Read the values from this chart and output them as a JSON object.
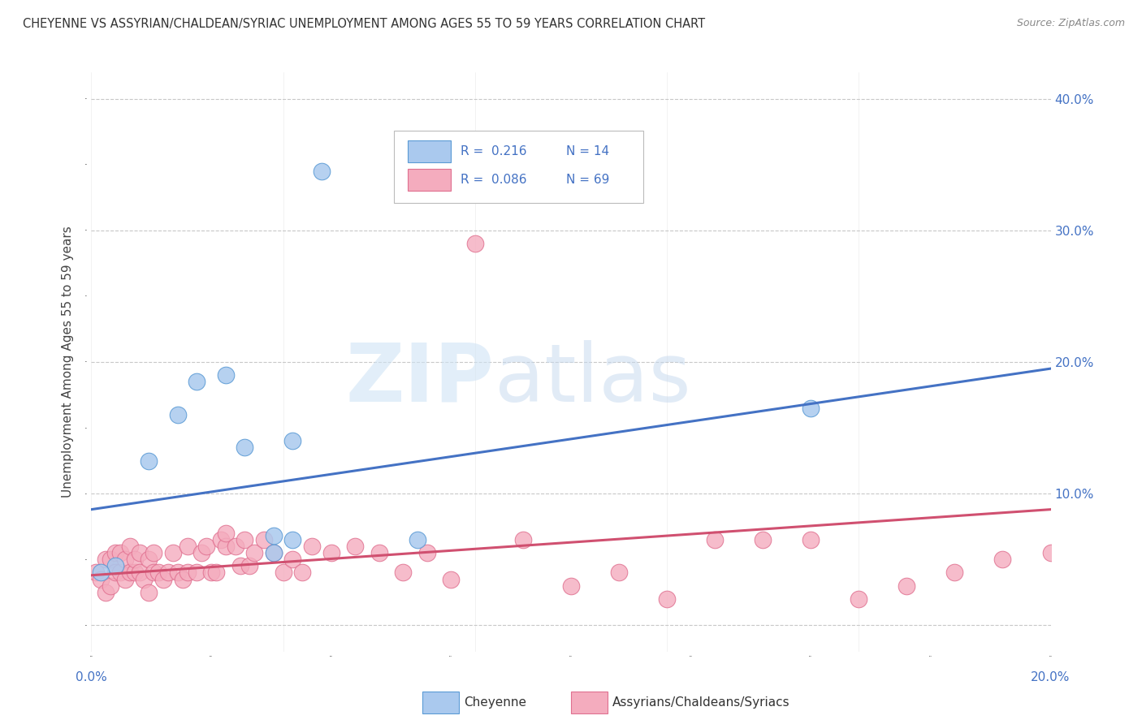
{
  "title": "CHEYENNE VS ASSYRIAN/CHALDEAN/SYRIAC UNEMPLOYMENT AMONG AGES 55 TO 59 YEARS CORRELATION CHART",
  "source": "Source: ZipAtlas.com",
  "ylabel": "Unemployment Among Ages 55 to 59 years",
  "xlim": [
    0.0,
    0.2
  ],
  "ylim": [
    -0.02,
    0.42
  ],
  "xticks": [
    0.0,
    0.04,
    0.08,
    0.12,
    0.16,
    0.2
  ],
  "yticks": [
    0.0,
    0.1,
    0.2,
    0.3,
    0.4
  ],
  "xticklabels": [
    "0.0%",
    "",
    "",
    "",
    "",
    "20.0%"
  ],
  "yticklabels_right": [
    "",
    "10.0%",
    "20.0%",
    "30.0%",
    "40.0%"
  ],
  "blue_fill": "#aac9ee",
  "blue_edge": "#5b9bd5",
  "pink_fill": "#f4acbe",
  "pink_edge": "#e07090",
  "blue_line_color": "#4472c4",
  "pink_line_color": "#d05070",
  "legend_R_blue": "R =  0.216",
  "legend_N_blue": "N = 14",
  "legend_R_pink": "R =  0.086",
  "legend_N_pink": "N = 69",
  "watermark_zip": "ZIP",
  "watermark_atlas": "atlas",
  "blue_points_x": [
    0.005,
    0.012,
    0.018,
    0.022,
    0.028,
    0.032,
    0.038,
    0.042,
    0.048,
    0.068,
    0.038,
    0.042,
    0.15,
    0.002
  ],
  "blue_points_y": [
    0.045,
    0.125,
    0.16,
    0.185,
    0.19,
    0.135,
    0.068,
    0.14,
    0.345,
    0.065,
    0.055,
    0.065,
    0.165,
    0.04
  ],
  "pink_points_x": [
    0.001,
    0.002,
    0.003,
    0.003,
    0.004,
    0.004,
    0.005,
    0.005,
    0.006,
    0.006,
    0.007,
    0.007,
    0.008,
    0.008,
    0.009,
    0.009,
    0.01,
    0.01,
    0.011,
    0.012,
    0.012,
    0.013,
    0.013,
    0.014,
    0.015,
    0.016,
    0.017,
    0.018,
    0.019,
    0.02,
    0.02,
    0.022,
    0.023,
    0.024,
    0.025,
    0.026,
    0.027,
    0.028,
    0.028,
    0.03,
    0.031,
    0.032,
    0.033,
    0.034,
    0.036,
    0.038,
    0.04,
    0.042,
    0.044,
    0.046,
    0.05,
    0.055,
    0.06,
    0.065,
    0.07,
    0.075,
    0.08,
    0.09,
    0.1,
    0.11,
    0.12,
    0.13,
    0.14,
    0.15,
    0.16,
    0.17,
    0.18,
    0.19,
    0.2
  ],
  "pink_points_y": [
    0.04,
    0.035,
    0.025,
    0.05,
    0.03,
    0.05,
    0.04,
    0.055,
    0.04,
    0.055,
    0.035,
    0.05,
    0.04,
    0.06,
    0.04,
    0.05,
    0.04,
    0.055,
    0.035,
    0.025,
    0.05,
    0.04,
    0.055,
    0.04,
    0.035,
    0.04,
    0.055,
    0.04,
    0.035,
    0.04,
    0.06,
    0.04,
    0.055,
    0.06,
    0.04,
    0.04,
    0.065,
    0.06,
    0.07,
    0.06,
    0.045,
    0.065,
    0.045,
    0.055,
    0.065,
    0.055,
    0.04,
    0.05,
    0.04,
    0.06,
    0.055,
    0.06,
    0.055,
    0.04,
    0.055,
    0.035,
    0.29,
    0.065,
    0.03,
    0.04,
    0.02,
    0.065,
    0.065,
    0.065,
    0.02,
    0.03,
    0.04,
    0.05,
    0.055
  ],
  "blue_trendline_x": [
    0.0,
    0.2
  ],
  "blue_trendline_y": [
    0.088,
    0.195
  ],
  "pink_trendline_x": [
    0.0,
    0.2
  ],
  "pink_trendline_y": [
    0.038,
    0.088
  ],
  "background_color": "#ffffff",
  "grid_color": "#c8c8c8",
  "axis_label_color": "#4472c4",
  "tick_label_color": "#333333"
}
